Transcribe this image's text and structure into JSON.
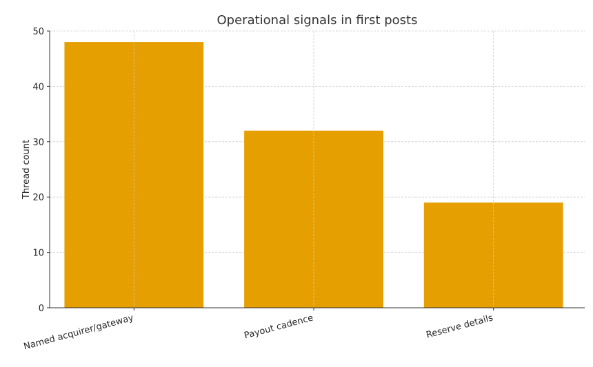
{
  "chart_data": {
    "type": "bar",
    "title": "Operational signals in first posts",
    "xlabel": "",
    "ylabel": "Thread count",
    "categories": [
      "Named acquirer/gateway",
      "Payout cadence",
      "Reserve details"
    ],
    "values": [
      48,
      32,
      19
    ],
    "ylim": [
      0,
      50
    ],
    "yticks": [
      0,
      10,
      20,
      30,
      40,
      50
    ],
    "grid": true,
    "bar_color": "#E69F00"
  }
}
